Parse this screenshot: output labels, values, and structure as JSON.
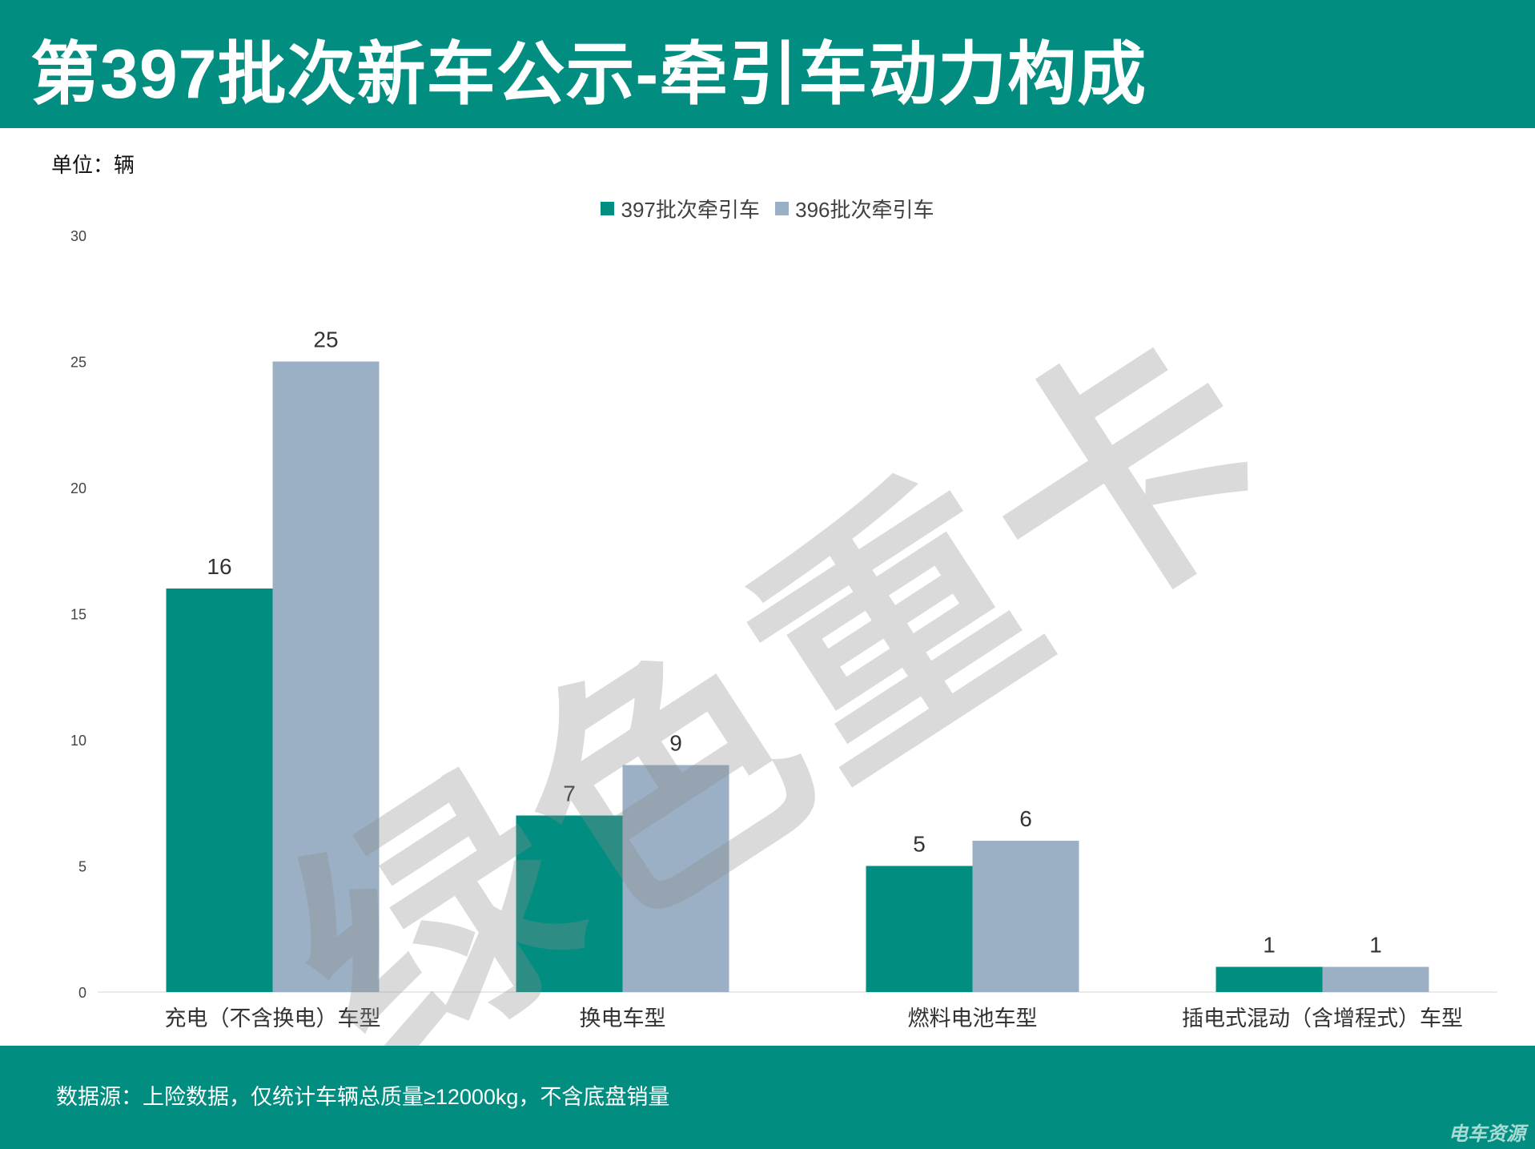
{
  "header": {
    "title": "第397批次新车公示-牵引车动力构成"
  },
  "unit_label": "单位：辆",
  "legend": [
    {
      "label": "397批次牵引车",
      "color": "#018e81"
    },
    {
      "label": "396批次牵引车",
      "color": "#9bb0c5"
    }
  ],
  "watermark": "绿色重卡",
  "footer": {
    "source": "数据源：上险数据，仅统计车辆总质量≥12000kg，不含底盘销量",
    "credit": "电车资源"
  },
  "colors": {
    "brand": "#018e81",
    "series_a": "#018e81",
    "series_b": "#9bb0c5"
  },
  "chart_data": {
    "type": "bar",
    "categories": [
      "充电（不含换电）车型",
      "换电车型",
      "燃料电池车型",
      "插电式混动（含增程式）车型"
    ],
    "series": [
      {
        "name": "397批次牵引车",
        "values": [
          16,
          7,
          5,
          1
        ]
      },
      {
        "name": "396批次牵引车",
        "values": [
          25,
          9,
          6,
          1
        ]
      }
    ],
    "ylim": [
      0,
      30
    ],
    "yticks": [
      0,
      5,
      10,
      15,
      20,
      25,
      30
    ],
    "grid": false,
    "data_labels": true,
    "legend_position": "top-center"
  }
}
